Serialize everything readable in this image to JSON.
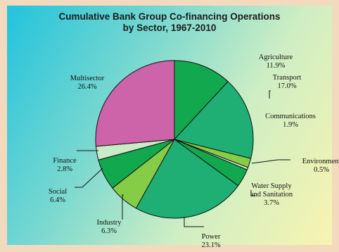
{
  "chart_data": {
    "type": "pie",
    "title": "Cumulative Bank Group Co-financing Operations\nby  Sector, 1967-2010",
    "slices": [
      {
        "label": "Agriculture",
        "pct_text": "11.9%",
        "value": 11.9,
        "color": "#12a84d"
      },
      {
        "label": "Transport",
        "pct_text": "17.0%",
        "value": 17.0,
        "color": "#1fae73"
      },
      {
        "label": "Communications",
        "pct_text": "1.9%",
        "value": 1.9,
        "color": "#85cc47"
      },
      {
        "label": "Environment",
        "pct_text": "0.5%",
        "value": 0.5,
        "color": "#c9ecc6"
      },
      {
        "label": "Water Supply\nand Sanitation",
        "pct_text": "3.7%",
        "value": 3.7,
        "color": "#12a84d"
      },
      {
        "label": "Power",
        "pct_text": "23.1%",
        "value": 23.1,
        "color": "#1fae73"
      },
      {
        "label": "Industry",
        "pct_text": "6.3%",
        "value": 6.3,
        "color": "#85cc47"
      },
      {
        "label": "Social",
        "pct_text": "6.4%",
        "value": 6.4,
        "color": "#12a84d"
      },
      {
        "label": "Finance",
        "pct_text": "2.8%",
        "value": 2.8,
        "color": "#c9ecc6"
      },
      {
        "label": "Multisector",
        "pct_text": "26.4%",
        "value": 26.4,
        "color": "#cd63a9"
      }
    ]
  }
}
